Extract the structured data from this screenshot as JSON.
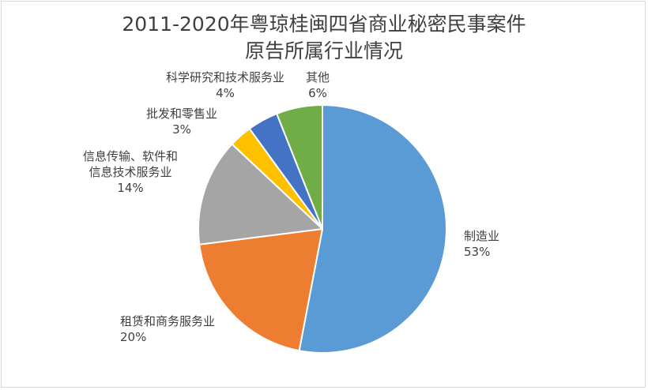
{
  "chart_data": {
    "type": "pie",
    "title": [
      "2011-2020年粤琼桂闽四省商业秘密民事案件",
      "原告所属行业情况"
    ],
    "slices": [
      {
        "label": [
          "制造业"
        ],
        "value": 53,
        "pct": "53%",
        "color": "#5b9bd5"
      },
      {
        "label": [
          "租赁和商务服务业"
        ],
        "value": 20,
        "pct": "20%",
        "color": "#ed7d31"
      },
      {
        "label": [
          "信息传输、软件和",
          "信息技术服务业"
        ],
        "value": 14,
        "pct": "14%",
        "color": "#a5a5a5"
      },
      {
        "label": [
          "批发和零售业"
        ],
        "value": 3,
        "pct": "3%",
        "color": "#ffc000"
      },
      {
        "label": [
          "科学研究和技术服务业"
        ],
        "value": 4,
        "pct": "4%",
        "color": "#4472c4"
      },
      {
        "label": [
          "其他"
        ],
        "value": 6,
        "pct": "6%",
        "color": "#70ad47"
      }
    ],
    "start_angle_deg": 0,
    "direction": "clockwise",
    "legend": "none",
    "labels": "outside"
  }
}
